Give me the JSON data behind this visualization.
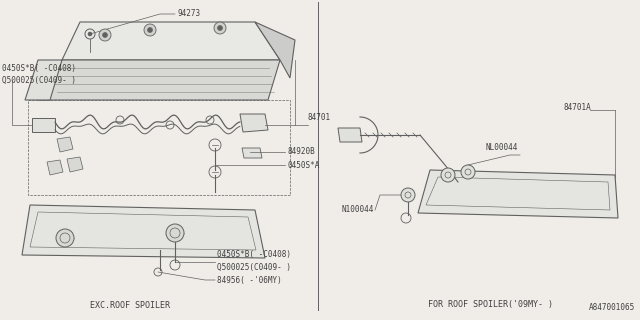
{
  "bg_color": "#f0ede8",
  "line_color": "#606060",
  "text_color": "#404040",
  "diagram_id": "A847001065",
  "left_caption": "EXC.ROOF SPOILER",
  "right_caption": "FOR ROOF SPOILER('09MY- )",
  "figsize": [
    6.4,
    3.2
  ],
  "dpi": 100
}
